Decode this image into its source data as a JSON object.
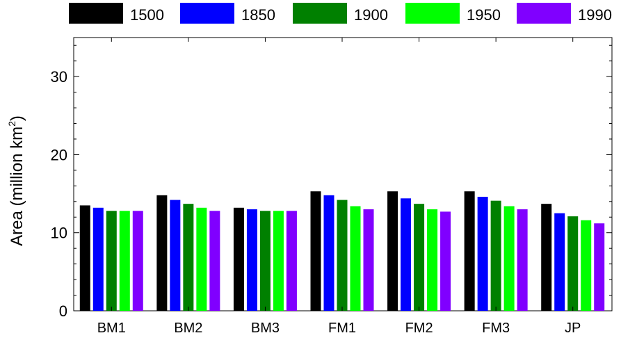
{
  "chart_data": {
    "type": "bar",
    "categories": [
      "BM1",
      "BM2",
      "BM3",
      "FM1",
      "FM2",
      "FM3",
      "JP"
    ],
    "series": [
      {
        "name": "1500",
        "color": "#000000",
        "values": [
          13.5,
          14.8,
          13.2,
          15.3,
          15.3,
          15.3,
          13.7
        ]
      },
      {
        "name": "1850",
        "color": "#0000ff",
        "values": [
          13.2,
          14.2,
          13.0,
          14.8,
          14.4,
          14.6,
          12.5
        ]
      },
      {
        "name": "1900",
        "color": "#008000",
        "values": [
          12.8,
          13.7,
          12.8,
          14.2,
          13.7,
          14.1,
          12.1
        ]
      },
      {
        "name": "1950",
        "color": "#00ff00",
        "values": [
          12.8,
          13.2,
          12.8,
          13.4,
          13.0,
          13.4,
          11.6
        ]
      },
      {
        "name": "1990",
        "color": "#8000ff",
        "values": [
          12.8,
          12.8,
          12.8,
          13.0,
          12.7,
          13.0,
          11.2
        ]
      }
    ],
    "ylabel": "Area (million km",
    "ylabel_sup": "2",
    "ylabel_end": ")",
    "ylim": [
      0,
      35
    ],
    "yticks": [
      0,
      10,
      20,
      30
    ],
    "grid": false,
    "legend_position": "top"
  }
}
